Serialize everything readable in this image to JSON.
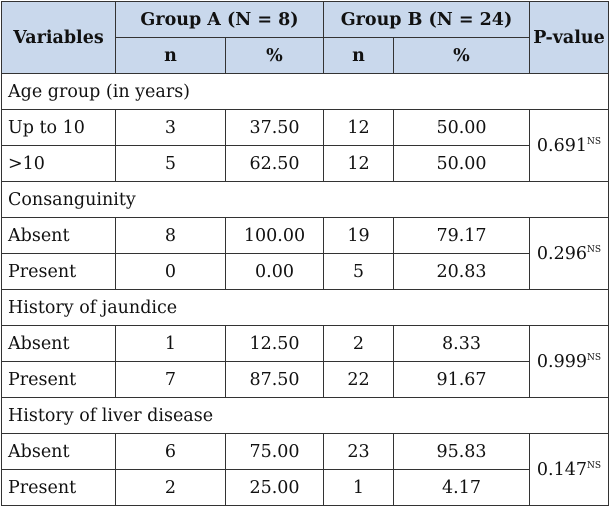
{
  "header": {
    "variables": "Variables",
    "group_a": "Group A (N = 8)",
    "group_b": "Group B (N = 24)",
    "p_value": "P-value",
    "n": "n",
    "pct": "%"
  },
  "sections": [
    {
      "title": "Age group (in years)",
      "p": "0.691",
      "sig": "NS",
      "rows": [
        {
          "label": "Up to 10",
          "a_n": "3",
          "a_pct": "37.50",
          "b_n": "12",
          "b_pct": "50.00"
        },
        {
          "label": ">10",
          "a_n": "5",
          "a_pct": "62.50",
          "b_n": "12",
          "b_pct": "50.00"
        }
      ]
    },
    {
      "title": "Consanguinity",
      "p": "0.296",
      "sig": "NS",
      "rows": [
        {
          "label": "Absent",
          "a_n": "8",
          "a_pct": "100.00",
          "b_n": "19",
          "b_pct": "79.17"
        },
        {
          "label": "Present",
          "a_n": "0",
          "a_pct": "0.00",
          "b_n": "5",
          "b_pct": "20.83"
        }
      ]
    },
    {
      "title": "History of jaundice",
      "p": "0.999",
      "sig": "NS",
      "rows": [
        {
          "label": "Absent",
          "a_n": "1",
          "a_pct": "12.50",
          "b_n": "2",
          "b_pct": "8.33"
        },
        {
          "label": "Present",
          "a_n": "7",
          "a_pct": "87.50",
          "b_n": "22",
          "b_pct": "91.67"
        }
      ]
    },
    {
      "title": "History of liver disease",
      "p": "0.147",
      "sig": "NS",
      "rows": [
        {
          "label": "Absent",
          "a_n": "6",
          "a_pct": "75.00",
          "b_n": "23",
          "b_pct": "95.83"
        },
        {
          "label": "Present",
          "a_n": "2",
          "a_pct": "25.00",
          "b_n": "1",
          "b_pct": "4.17"
        }
      ]
    }
  ]
}
